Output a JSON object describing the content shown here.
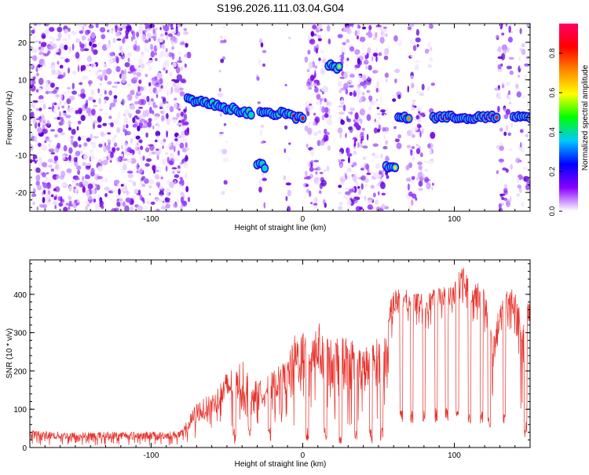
{
  "title": "S196.2026.111.03.04.G04",
  "chart_data": [
    {
      "type": "heatmap",
      "title": "S196.2026.111.03.04.G04",
      "xlabel": "Height of straight line (km)",
      "ylabel": "Frequency (Hz)",
      "xlim": [
        -180,
        150
      ],
      "ylim": [
        -25,
        25
      ],
      "x_ticks": [
        -100,
        0,
        100
      ],
      "y_ticks": [
        -20,
        -10,
        0,
        10,
        20
      ],
      "grid": false,
      "colorbar": {
        "label": "Normalized spectral amplitude",
        "range": [
          0,
          0.95
        ],
        "ticks": [
          0.0,
          0.2,
          0.4,
          0.6,
          0.8
        ],
        "tick_labels": [
          "0.0",
          "0.2",
          "0.4",
          "0.6",
          "0.8"
        ],
        "colors": [
          "#ffffff",
          "#8a00ff",
          "#0000ff",
          "#00c8ff",
          "#00ff00",
          "#ffff00",
          "#ff8800",
          "#ff0000",
          "#ff0066"
        ]
      },
      "noise_regions": [
        {
          "x": [
            -180,
            -75
          ],
          "density": 1.0
        },
        {
          "x": [
            -55,
            -50
          ],
          "density": 0.4
        },
        {
          "x": [
            -30,
            -25
          ],
          "density": 0.4
        },
        {
          "x": [
            -12,
            -8
          ],
          "density": 0.3
        },
        {
          "x": [
            2,
            18
          ],
          "density": 0.8
        },
        {
          "x": [
            24,
            56
          ],
          "density": 0.9
        },
        {
          "x": [
            60,
            64
          ],
          "density": 0.3
        },
        {
          "x": [
            69,
            86
          ],
          "density": 0.6
        },
        {
          "x": [
            128,
            138
          ],
          "density": 0.7
        },
        {
          "x": [
            141,
            150
          ],
          "density": 0.4
        }
      ],
      "signal_tracks": [
        {
          "x": [
            -76,
            -34
          ],
          "freq": [
            5,
            1
          ],
          "amplitude": 0.45
        },
        {
          "x": [
            -30,
            -25
          ],
          "freq": [
            -12,
            -13
          ],
          "amplitude": 0.45
        },
        {
          "x": [
            -28,
            -8
          ],
          "freq": [
            1,
            1
          ],
          "amplitude": 0.5
        },
        {
          "x": [
            -6,
            0
          ],
          "freq": [
            0,
            0
          ],
          "amplitude": 0.9
        },
        {
          "x": [
            17,
            24
          ],
          "freq": [
            14,
            13
          ],
          "amplitude": 0.6
        },
        {
          "x": [
            55,
            61
          ],
          "freq": [
            -13,
            -13
          ],
          "amplitude": 0.6
        },
        {
          "x": [
            63,
            70
          ],
          "freq": [
            0,
            0
          ],
          "amplitude": 0.9
        },
        {
          "x": [
            86,
            128
          ],
          "freq": [
            0,
            0
          ],
          "amplitude": 0.9
        },
        {
          "x": [
            139,
            150
          ],
          "freq": [
            0,
            0
          ],
          "amplitude": 0.9
        }
      ]
    },
    {
      "type": "line",
      "xlabel": "Height of straight line (km)",
      "ylabel": "SNR (10 * v/v)",
      "xlim": [
        -180,
        150
      ],
      "ylim": [
        0,
        490
      ],
      "x_ticks": [
        -100,
        0,
        100
      ],
      "y_ticks": [
        0,
        100,
        200,
        300,
        400
      ],
      "grid": false,
      "color": "#e8312a",
      "envelope": {
        "x": [
          -180,
          -150,
          -120,
          -90,
          -80,
          -75,
          -70,
          -60,
          -50,
          -40,
          -30,
          -20,
          -10,
          -5,
          0,
          10,
          20,
          30,
          40,
          50,
          55,
          58,
          62,
          70,
          80,
          90,
          100,
          105,
          110,
          120,
          125,
          130,
          135,
          140,
          145,
          150
        ],
        "high": [
          45,
          40,
          42,
          42,
          45,
          80,
          120,
          140,
          200,
          230,
          170,
          200,
          230,
          300,
          310,
          330,
          280,
          300,
          260,
          290,
          300,
          400,
          420,
          410,
          400,
          420,
          430,
          480,
          440,
          420,
          300,
          370,
          420,
          410,
          330,
          400
        ],
        "low": [
          5,
          5,
          5,
          5,
          5,
          10,
          20,
          40,
          40,
          50,
          60,
          60,
          70,
          40,
          50,
          80,
          40,
          60,
          40,
          60,
          100,
          280,
          300,
          320,
          300,
          330,
          320,
          350,
          320,
          300,
          100,
          280,
          300,
          280,
          40,
          300
        ],
        "dip_x": [
          -45,
          -35,
          -22,
          3,
          15,
          25,
          35,
          45,
          52,
          65,
          72,
          80,
          88,
          95,
          102,
          110,
          118,
          123,
          133,
          147
        ]
      }
    }
  ]
}
